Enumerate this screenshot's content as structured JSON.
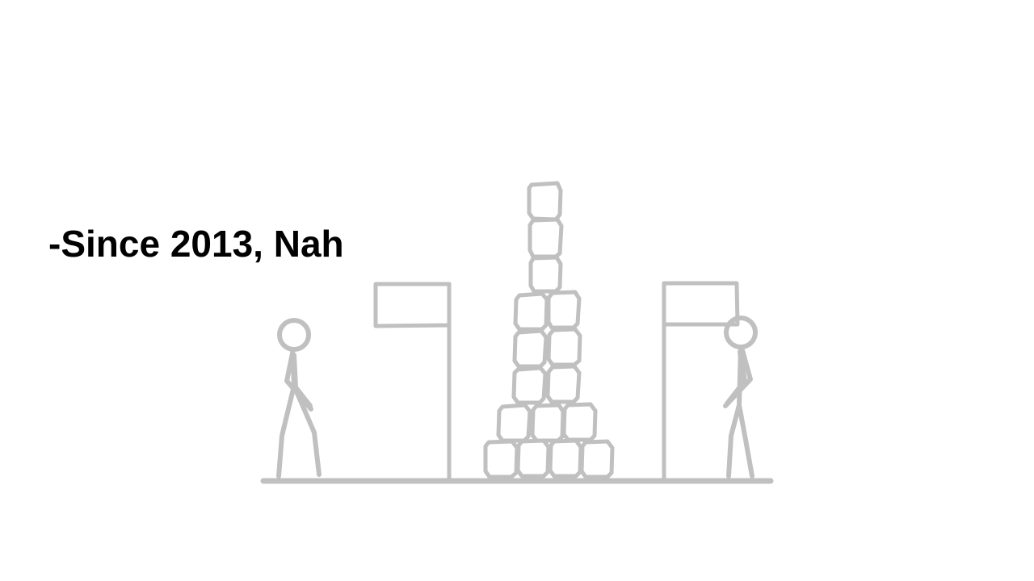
{
  "slide": {
    "caption": "-Since 2013, Nah"
  },
  "colors": {
    "background": "#ffffff",
    "text": "#000000",
    "drawing": "#c0c0c0"
  },
  "illustration": {
    "left_figure": "stick-figure-icon",
    "right_figure": "stick-figure-icon",
    "left_flag": "flag-icon",
    "right_flag": "flag-icon",
    "tower": "block-tower-icon"
  }
}
